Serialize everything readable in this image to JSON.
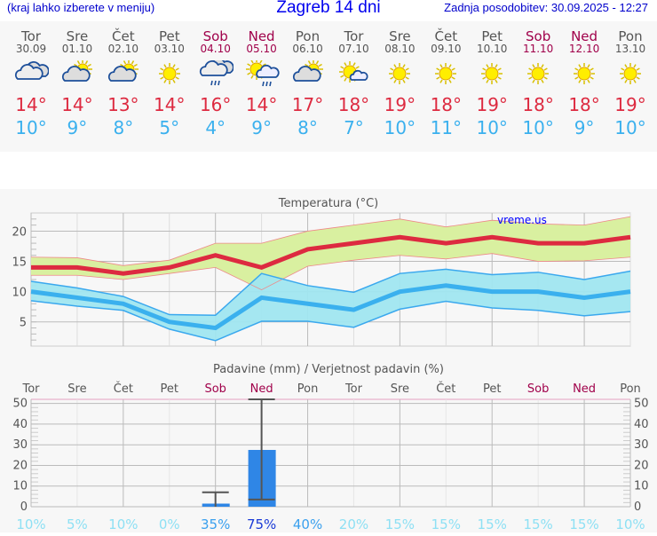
{
  "header": {
    "hint": "(kraj lahko izberete v meniju)",
    "title": "Zagreb 14 dni",
    "updated": "Zadnja posodobitev: 30.09.2025 - 12:27"
  },
  "colors": {
    "high": "#dd2a40",
    "low": "#3ab0ee",
    "weekend": "#a0004a",
    "high_band": "#d9f0a0",
    "low_band": "#a0e6f0",
    "bar": "#2f86e6"
  },
  "days": [
    {
      "name": "Tor",
      "date": "30.09",
      "icon": "cloudy",
      "high": "14°",
      "low": "10°",
      "weekend": false,
      "precip_prob": "10%"
    },
    {
      "name": "Sre",
      "date": "01.10",
      "icon": "partly-cloudy",
      "high": "14°",
      "low": "9°",
      "weekend": false,
      "precip_prob": "5%"
    },
    {
      "name": "Čet",
      "date": "02.10",
      "icon": "partly-cloudy",
      "high": "13°",
      "low": "8°",
      "weekend": false,
      "precip_prob": "10%"
    },
    {
      "name": "Pet",
      "date": "03.10",
      "icon": "sunny",
      "high": "14°",
      "low": "5°",
      "weekend": false,
      "precip_prob": "0%"
    },
    {
      "name": "Sob",
      "date": "04.10",
      "icon": "rain-cloud",
      "high": "16°",
      "low": "4°",
      "weekend": true,
      "precip_prob": "35%"
    },
    {
      "name": "Ned",
      "date": "05.10",
      "icon": "sun-rain",
      "high": "14°",
      "low": "9°",
      "weekend": true,
      "precip_prob": "75%"
    },
    {
      "name": "Pon",
      "date": "06.10",
      "icon": "partly-cloudy",
      "high": "17°",
      "low": "8°",
      "weekend": false,
      "precip_prob": "40%"
    },
    {
      "name": "Tor",
      "date": "07.10",
      "icon": "sun-small-cloud",
      "high": "18°",
      "low": "7°",
      "weekend": false,
      "precip_prob": "20%"
    },
    {
      "name": "Sre",
      "date": "08.10",
      "icon": "sunny",
      "high": "19°",
      "low": "10°",
      "weekend": false,
      "precip_prob": "15%"
    },
    {
      "name": "Čet",
      "date": "09.10",
      "icon": "sunny",
      "high": "18°",
      "low": "11°",
      "weekend": false,
      "precip_prob": "15%"
    },
    {
      "name": "Pet",
      "date": "10.10",
      "icon": "sunny",
      "high": "19°",
      "low": "10°",
      "weekend": false,
      "precip_prob": "15%"
    },
    {
      "name": "Sob",
      "date": "11.10",
      "icon": "sunny",
      "high": "18°",
      "low": "10°",
      "weekend": true,
      "precip_prob": "15%"
    },
    {
      "name": "Ned",
      "date": "12.10",
      "icon": "sunny",
      "high": "18°",
      "low": "9°",
      "weekend": true,
      "precip_prob": "15%"
    },
    {
      "name": "Pon",
      "date": "13.10",
      "icon": "sunny",
      "high": "19°",
      "low": "10°",
      "weekend": false,
      "precip_prob": "10%"
    }
  ],
  "chart_data": [
    {
      "type": "line",
      "title": "Temperatura (°C)",
      "watermark": "vreme.us",
      "ylim": [
        1,
        23
      ],
      "yticks": [
        5,
        10,
        15,
        20
      ],
      "grid": true,
      "series": [
        {
          "values": [
            14,
            14,
            13,
            14,
            16,
            14,
            17,
            18,
            19,
            18,
            19,
            18,
            18,
            19
          ],
          "band_upper": [
            15.7,
            15.6,
            14.3,
            15.2,
            18,
            18,
            20,
            21,
            22,
            20.7,
            21.8,
            21.2,
            21,
            22.4
          ],
          "band_lower": [
            12.7,
            12.7,
            12,
            13,
            14,
            10.3,
            14.2,
            15.2,
            16,
            15.4,
            16.3,
            15,
            15.1,
            15.7
          ]
        },
        {
          "values": [
            10,
            9,
            8,
            5,
            4,
            9,
            8,
            7,
            10,
            11,
            10,
            10,
            9,
            10
          ],
          "band_upper": [
            11.7,
            10.6,
            9.2,
            6.2,
            6.1,
            13,
            11,
            9.9,
            13,
            13.7,
            12.8,
            13.2,
            12,
            13.4
          ],
          "band_lower": [
            8.5,
            7.6,
            6.9,
            3.8,
            1.9,
            5.1,
            5.1,
            4.1,
            7.1,
            8.4,
            7.3,
            6.9,
            6,
            6.7
          ]
        }
      ]
    },
    {
      "type": "bar",
      "title": "Padavine (mm) / Verjetnost padavin (%)",
      "ylim": [
        0,
        52
      ],
      "yticks": [
        0,
        10,
        20,
        30,
        40,
        50
      ],
      "grid": true,
      "categories": [
        "Tor",
        "Sre",
        "Čet",
        "Pet",
        "Sob",
        "Ned",
        "Pon",
        "Tor",
        "Sre",
        "Čet",
        "Pet",
        "Sob",
        "Ned",
        "Pon"
      ],
      "values": [
        0,
        0,
        0,
        0,
        1.5,
        27.5,
        0,
        0,
        0,
        0,
        0,
        0,
        0,
        0
      ],
      "error_low": [
        null,
        null,
        null,
        null,
        0,
        3.5,
        null,
        null,
        null,
        null,
        null,
        null,
        null,
        null
      ],
      "error_high": [
        null,
        null,
        null,
        null,
        7,
        52,
        null,
        null,
        null,
        null,
        null,
        null,
        null,
        null
      ]
    }
  ]
}
